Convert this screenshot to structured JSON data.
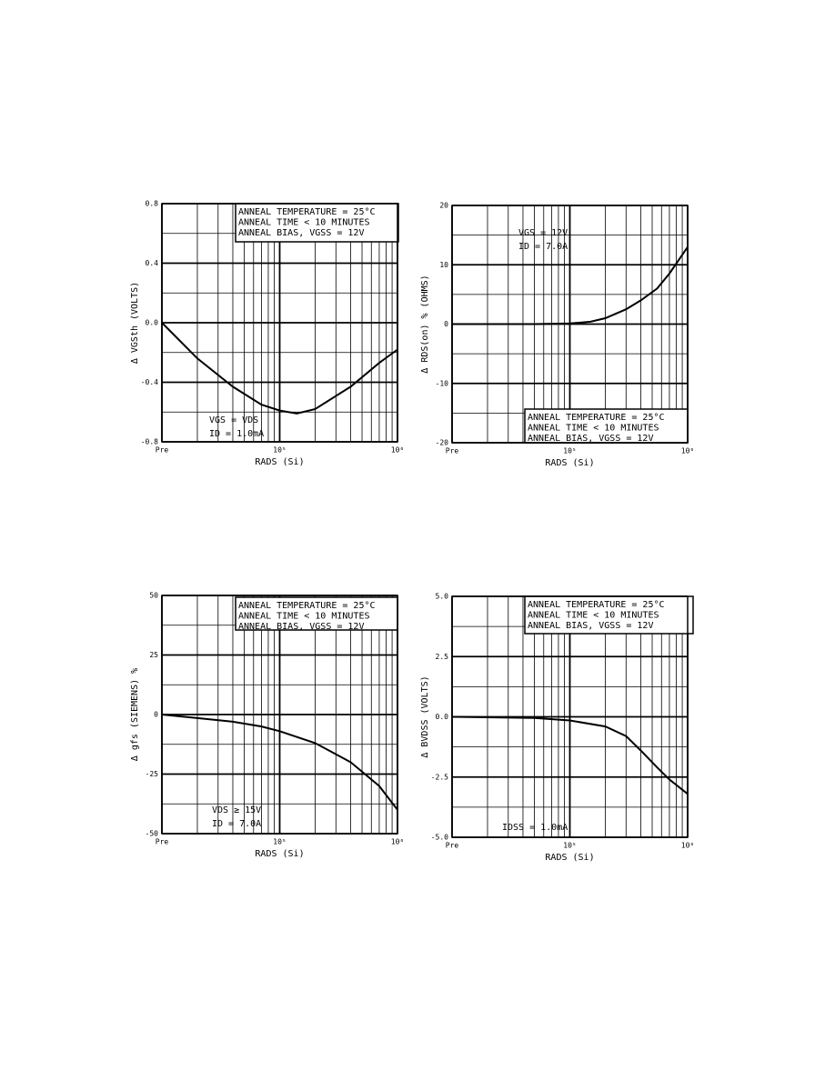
{
  "chart_data": [
    {
      "type": "line",
      "xlog": true,
      "grid": true,
      "xlabel": "RADS (Si)",
      "ylabel": "Δ VGSth (VOLTS)",
      "box": [
        "ANNEAL TEMPERATURE = 25°C",
        "ANNEAL TIME < 10 MINUTES",
        "ANNEAL BIAS, VGSS = 12V"
      ],
      "notes": [
        "VGS = VDS",
        "ID = 1.0mA"
      ],
      "x": [
        10000,
        20000,
        40000,
        70000,
        100000,
        140000,
        200000,
        400000,
        700000,
        1000000
      ],
      "series": [
        {
          "color": "#000000",
          "values": [
            0,
            -0.24,
            -0.43,
            -0.55,
            -0.59,
            -0.61,
            -0.58,
            -0.43,
            -0.27,
            -0.18
          ]
        }
      ],
      "xlim": [
        10000,
        1000000
      ],
      "xticks": [
        {
          "value": 10000,
          "label": "Pre"
        },
        {
          "value": 100000,
          "label": "10⁵"
        },
        {
          "value": 1000000,
          "label": "10⁶"
        }
      ],
      "ylim": [
        -0.8,
        0.8
      ],
      "yticks": [
        0.8,
        0.4,
        {
          "value": 0,
          "label": "0.0"
        },
        -0.4,
        -0.8
      ]
    },
    {
      "type": "line",
      "xlog": true,
      "grid": true,
      "xlabel": "RADS (Si)",
      "ylabel": "Δ RDS(on) % (OHMS)",
      "box": [
        "ANNEAL TEMPERATURE = 25°C",
        "ANNEAL TIME < 10 MINUTES",
        "ANNEAL BIAS, VGSS = 12V"
      ],
      "notes": [
        "VGS = 12V",
        "ID = 7.0A"
      ],
      "x": [
        10000,
        50000,
        100000,
        150000,
        200000,
        300000,
        400000,
        550000,
        700000,
        1000000
      ],
      "series": [
        {
          "color": "#000000",
          "values": [
            0,
            0,
            0.1,
            0.4,
            1,
            2.5,
            4,
            6,
            8.5,
            13
          ]
        }
      ],
      "xlim": [
        10000,
        1000000
      ],
      "xticks": [
        {
          "value": 10000,
          "label": "Pre"
        },
        {
          "value": 100000,
          "label": "10⁵"
        },
        {
          "value": 1000000,
          "label": "10⁶"
        }
      ],
      "ylim": [
        -20,
        20
      ],
      "yticks": [
        20,
        10,
        0,
        -10,
        -20
      ]
    },
    {
      "type": "line",
      "xlog": true,
      "grid": true,
      "xlabel": "RADS (Si)",
      "ylabel": "Δ gfs (SIEMENS) %",
      "box": [
        "ANNEAL TEMPERATURE = 25°C",
        "ANNEAL TIME < 10 MINUTES",
        "ANNEAL BIAS, VGSS = 12V"
      ],
      "notes": [
        "VDS ≥ 15V",
        "ID = 7.0A"
      ],
      "x": [
        10000,
        20000,
        40000,
        70000,
        100000,
        200000,
        400000,
        700000,
        1000000
      ],
      "series": [
        {
          "color": "#000000",
          "values": [
            0,
            -1.5,
            -3,
            -5,
            -7,
            -12,
            -20,
            -30,
            -40
          ]
        }
      ],
      "xlim": [
        10000,
        1000000
      ],
      "xticks": [
        {
          "value": 10000,
          "label": "Pre"
        },
        {
          "value": 100000,
          "label": "10⁵"
        },
        {
          "value": 1000000,
          "label": "10⁶"
        }
      ],
      "ylim": [
        -50,
        50
      ],
      "yticks": [
        50,
        25,
        0,
        -25,
        -50
      ]
    },
    {
      "type": "line",
      "xlog": true,
      "grid": true,
      "xlabel": "RADS (Si)",
      "ylabel": "Δ BVDSS (VOLTS)",
      "box": [
        "ANNEAL TEMPERATURE = 25°C",
        "ANNEAL TIME < 10 MINUTES",
        "ANNEAL BIAS, VGSS = 12V"
      ],
      "notes": [
        "IDSS = 1.0mA"
      ],
      "x": [
        10000,
        50000,
        100000,
        200000,
        300000,
        400000,
        550000,
        700000,
        1000000
      ],
      "series": [
        {
          "color": "#000000",
          "values": [
            0,
            -0.05,
            -0.15,
            -0.4,
            -0.8,
            -1.4,
            -2.1,
            -2.6,
            -3.2
          ]
        }
      ],
      "xlim": [
        10000,
        1000000
      ],
      "xticks": [
        {
          "value": 10000,
          "label": "Pre"
        },
        {
          "value": 100000,
          "label": "10⁵"
        },
        {
          "value": 1000000,
          "label": "10⁶"
        }
      ],
      "ylim": [
        -5,
        5
      ],
      "yticks": [
        {
          "value": 5,
          "label": "5.0"
        },
        2.5,
        {
          "value": 0,
          "label": "0.0"
        },
        -2.5,
        {
          "value": -5,
          "label": "-5.0"
        }
      ]
    }
  ]
}
